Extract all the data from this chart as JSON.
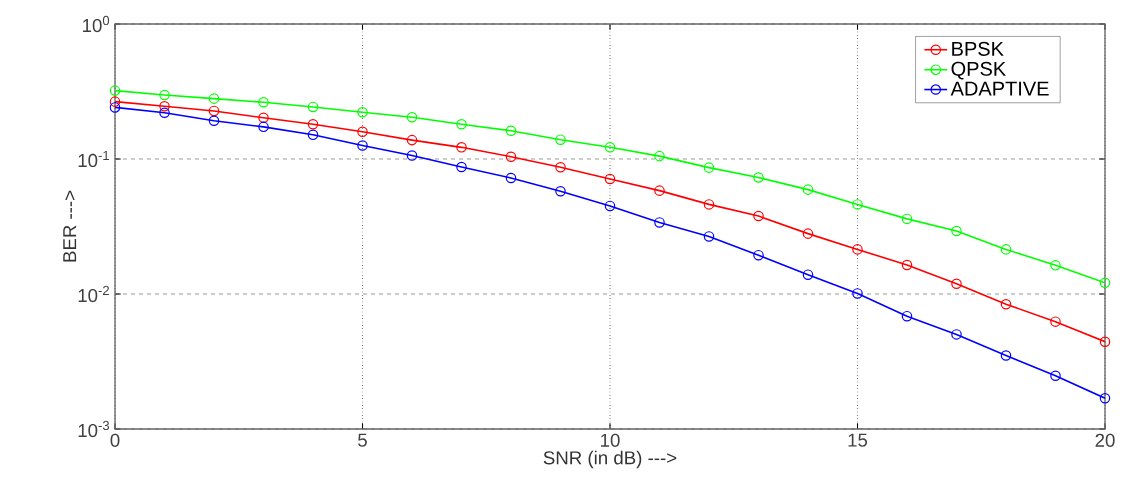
{
  "chart_data": {
    "type": "line",
    "xlabel": "SNR (in dB) --->",
    "ylabel": "BER --->",
    "x": [
      0,
      1,
      2,
      3,
      4,
      5,
      6,
      7,
      8,
      9,
      10,
      11,
      12,
      13,
      14,
      15,
      16,
      17,
      18,
      19,
      20
    ],
    "series": [
      {
        "name": "BPSK",
        "color": "#ff0000",
        "values": [
          0.266,
          0.246,
          0.227,
          0.202,
          0.181,
          0.159,
          0.138,
          0.122,
          0.104,
          0.0868,
          0.0711,
          0.0583,
          0.0461,
          0.0378,
          0.028,
          0.0214,
          0.0164,
          0.0119,
          0.0084,
          0.00624,
          0.00443
        ]
      },
      {
        "name": "QPSK",
        "color": "#00ff00",
        "values": [
          0.321,
          0.298,
          0.28,
          0.263,
          0.243,
          0.222,
          0.204,
          0.181,
          0.162,
          0.139,
          0.122,
          0.105,
          0.0863,
          0.0729,
          0.0593,
          0.0461,
          0.036,
          0.0293,
          0.0214,
          0.0163,
          0.0121
        ]
      },
      {
        "name": "ADAPTIVE",
        "color": "#0000ff",
        "values": [
          0.241,
          0.22,
          0.192,
          0.173,
          0.151,
          0.126,
          0.106,
          0.0873,
          0.0723,
          0.0577,
          0.0449,
          0.0339,
          0.0267,
          0.0194,
          0.0139,
          0.0101,
          0.00685,
          0.00502,
          0.0035,
          0.00248,
          0.00169
        ]
      }
    ],
    "xlim": [
      0,
      20
    ],
    "ylim": [
      0.001,
      1
    ],
    "xticks": [
      0,
      5,
      10,
      15,
      20
    ],
    "yticks": [
      {
        "value": 0.001,
        "label": "10$^{-3}$"
      },
      {
        "value": 0.01,
        "label": "10$^{-2}$"
      },
      {
        "value": 0.1,
        "label": "10$^{-1}$"
      },
      {
        "value": 1,
        "label": "10$^{0}$"
      }
    ],
    "log": "y",
    "grid": true,
    "legend": "top right",
    "marker": "circle"
  }
}
